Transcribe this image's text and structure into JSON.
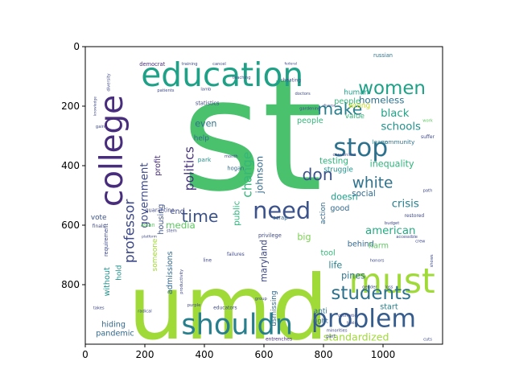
{
  "chart_data": {
    "type": "wordcloud",
    "title": "",
    "xlabel": "",
    "ylabel": "",
    "xlim": [
      0,
      1200
    ],
    "ylim": [
      1000,
      0
    ],
    "x_ticks": [
      0,
      200,
      400,
      600,
      800,
      1000
    ],
    "y_ticks": [
      0,
      200,
      400,
      600,
      800
    ],
    "grid": false,
    "colormap": "viridis",
    "words": [
      {
        "text": "st",
        "x": 560,
        "y": 300,
        "size": 520,
        "rot": 0,
        "color": "#4ac16d"
      },
      {
        "text": "umd",
        "x": 480,
        "y": 880,
        "size": 300,
        "rot": 0,
        "color": "#a0da39"
      },
      {
        "text": "education",
        "x": 460,
        "y": 95,
        "size": 110,
        "rot": 0,
        "color": "#1fa187"
      },
      {
        "text": "must",
        "x": 1030,
        "y": 790,
        "size": 115,
        "rot": 0,
        "color": "#a0da39"
      },
      {
        "text": "college",
        "x": 90,
        "y": 350,
        "size": 105,
        "rot": -90,
        "color": "#472d7b"
      },
      {
        "text": "shouldn",
        "x": 510,
        "y": 935,
        "size": 95,
        "rot": 0,
        "color": "#277f8e"
      },
      {
        "text": "problem",
        "x": 935,
        "y": 915,
        "size": 85,
        "rot": 0,
        "color": "#365c8d"
      },
      {
        "text": "stop",
        "x": 925,
        "y": 340,
        "size": 85,
        "rot": 0,
        "color": "#2c728e"
      },
      {
        "text": "need",
        "x": 660,
        "y": 550,
        "size": 78,
        "rot": 0,
        "color": "#3b528b"
      },
      {
        "text": "women",
        "x": 1030,
        "y": 140,
        "size": 62,
        "rot": 0,
        "color": "#1fa187"
      },
      {
        "text": "students",
        "x": 960,
        "y": 830,
        "size": 62,
        "rot": 0,
        "color": "#2c728e"
      },
      {
        "text": "time",
        "x": 385,
        "y": 570,
        "size": 55,
        "rot": 0,
        "color": "#3b528b"
      },
      {
        "text": "make",
        "x": 855,
        "y": 210,
        "size": 55,
        "rot": 0,
        "color": "#277f8e"
      },
      {
        "text": "don",
        "x": 780,
        "y": 430,
        "size": 55,
        "rot": 0,
        "color": "#3b528b"
      },
      {
        "text": "white",
        "x": 965,
        "y": 460,
        "size": 50,
        "rot": 0,
        "color": "#2c728e"
      },
      {
        "text": "professor",
        "x": 150,
        "y": 620,
        "size": 46,
        "rot": -90,
        "color": "#3e4989"
      },
      {
        "text": "politics",
        "x": 350,
        "y": 410,
        "size": 42,
        "rot": -90,
        "color": "#46327e"
      },
      {
        "text": "change",
        "x": 545,
        "y": 430,
        "size": 42,
        "rot": -90,
        "color": "#35b779"
      },
      {
        "text": "government",
        "x": 200,
        "y": 500,
        "size": 36,
        "rot": -90,
        "color": "#3e4989"
      },
      {
        "text": "schools",
        "x": 1060,
        "y": 270,
        "size": 36,
        "rot": 0,
        "color": "#21918c"
      },
      {
        "text": "black",
        "x": 1040,
        "y": 225,
        "size": 36,
        "rot": 0,
        "color": "#20a486"
      },
      {
        "text": "crisis",
        "x": 1075,
        "y": 530,
        "size": 36,
        "rot": 0,
        "color": "#277f8e"
      },
      {
        "text": "american",
        "x": 1025,
        "y": 620,
        "size": 36,
        "rot": 0,
        "color": "#25ab82"
      },
      {
        "text": "standardized",
        "x": 910,
        "y": 975,
        "size": 34,
        "rot": 0,
        "color": "#a0da39"
      },
      {
        "text": "homeless",
        "x": 995,
        "y": 180,
        "size": 32,
        "rot": 0,
        "color": "#2c728e"
      },
      {
        "text": "johnson",
        "x": 585,
        "y": 430,
        "size": 32,
        "rot": -90,
        "color": "#31688e"
      },
      {
        "text": "inequality",
        "x": 1030,
        "y": 395,
        "size": 30,
        "rot": 0,
        "color": "#2fb47c"
      },
      {
        "text": "media",
        "x": 320,
        "y": 600,
        "size": 32,
        "rot": 0,
        "color": "#5ec962"
      },
      {
        "text": "pines",
        "x": 900,
        "y": 770,
        "size": 30,
        "rot": 0,
        "color": "#2c728e"
      },
      {
        "text": "big",
        "x": 735,
        "y": 640,
        "size": 30,
        "rot": 0,
        "color": "#7ad151"
      },
      {
        "text": "life",
        "x": 840,
        "y": 735,
        "size": 30,
        "rot": 0,
        "color": "#26828e"
      },
      {
        "text": "maryland",
        "x": 600,
        "y": 720,
        "size": 30,
        "rot": -90,
        "color": "#3e4989"
      },
      {
        "text": "public",
        "x": 510,
        "y": 560,
        "size": 28,
        "rot": -90,
        "color": "#2fb47c"
      },
      {
        "text": "testing",
        "x": 835,
        "y": 385,
        "size": 28,
        "rot": 0,
        "color": "#2fb47c"
      },
      {
        "text": "struggle",
        "x": 850,
        "y": 415,
        "size": 24,
        "rot": 0,
        "color": "#21918c"
      },
      {
        "text": "doesn",
        "x": 870,
        "y": 505,
        "size": 30,
        "rot": 0,
        "color": "#1f9e89"
      },
      {
        "text": "social",
        "x": 935,
        "y": 495,
        "size": 28,
        "rot": 0,
        "color": "#31688e"
      },
      {
        "text": "good",
        "x": 855,
        "y": 545,
        "size": 26,
        "rot": 0,
        "color": "#31688e"
      },
      {
        "text": "people",
        "x": 880,
        "y": 185,
        "size": 26,
        "rot": 0,
        "color": "#35b779"
      },
      {
        "text": "human",
        "x": 910,
        "y": 155,
        "size": 24,
        "rot": 0,
        "color": "#1f9e89"
      },
      {
        "text": "wrong",
        "x": 920,
        "y": 200,
        "size": 24,
        "rot": 0,
        "color": "#c8e020"
      },
      {
        "text": "value",
        "x": 905,
        "y": 235,
        "size": 24,
        "rot": 0,
        "color": "#35b779"
      },
      {
        "text": "people",
        "x": 755,
        "y": 250,
        "size": 26,
        "rot": 0,
        "color": "#35b779"
      },
      {
        "text": "even",
        "x": 405,
        "y": 260,
        "size": 30,
        "rot": 0,
        "color": "#2c728e"
      },
      {
        "text": "end",
        "x": 310,
        "y": 555,
        "size": 26,
        "rot": 0,
        "color": "#3e4989"
      },
      {
        "text": "help",
        "x": 390,
        "y": 310,
        "size": 24,
        "rot": 0,
        "color": "#31688e"
      },
      {
        "text": "profit",
        "x": 245,
        "y": 400,
        "size": 26,
        "rot": -90,
        "color": "#472d7b"
      },
      {
        "text": "housing",
        "x": 255,
        "y": 580,
        "size": 26,
        "rot": -90,
        "color": "#3b528b"
      },
      {
        "text": "admissions",
        "x": 285,
        "y": 760,
        "size": 26,
        "rot": -90,
        "color": "#31688e"
      },
      {
        "text": "someone",
        "x": 235,
        "y": 700,
        "size": 24,
        "rot": -90,
        "color": "#a0da39"
      },
      {
        "text": "hold",
        "x": 115,
        "y": 760,
        "size": 24,
        "rot": -90,
        "color": "#21918c"
      },
      {
        "text": "without",
        "x": 75,
        "y": 790,
        "size": 26,
        "rot": -90,
        "color": "#21918c"
      },
      {
        "text": "hiding",
        "x": 95,
        "y": 935,
        "size": 26,
        "rot": 0,
        "color": "#31688e"
      },
      {
        "text": "pandemic",
        "x": 100,
        "y": 965,
        "size": 26,
        "rot": 0,
        "color": "#31688e"
      },
      {
        "text": "vote",
        "x": 45,
        "y": 575,
        "size": 24,
        "rot": 0,
        "color": "#3b528b"
      },
      {
        "text": "behind",
        "x": 925,
        "y": 665,
        "size": 26,
        "rot": 0,
        "color": "#31688e"
      },
      {
        "text": "action",
        "x": 800,
        "y": 560,
        "size": 24,
        "rot": -90,
        "color": "#31688e"
      },
      {
        "text": "tool",
        "x": 815,
        "y": 695,
        "size": 26,
        "rot": 0,
        "color": "#35b779"
      },
      {
        "text": "harm",
        "x": 985,
        "y": 670,
        "size": 26,
        "rot": 0,
        "color": "#5ec962"
      },
      {
        "text": "start",
        "x": 1020,
        "y": 875,
        "size": 26,
        "rot": 0,
        "color": "#26828e"
      },
      {
        "text": "anti",
        "x": 790,
        "y": 890,
        "size": 24,
        "rot": 0,
        "color": "#2c728e"
      },
      {
        "text": "right",
        "x": 790,
        "y": 920,
        "size": 22,
        "rot": 0,
        "color": "#31688e"
      },
      {
        "text": "usmissing",
        "x": 635,
        "y": 880,
        "size": 24,
        "rot": -90,
        "color": "#31688e"
      },
      {
        "text": "leave",
        "x": 990,
        "y": 320,
        "size": 20,
        "rot": 0,
        "color": "#26828e"
      },
      {
        "text": "community",
        "x": 1050,
        "y": 320,
        "size": 20,
        "rot": 0,
        "color": "#2c728e"
      },
      {
        "text": "russian",
        "x": 1000,
        "y": 30,
        "size": 18,
        "rot": 0,
        "color": "#2c728e"
      },
      {
        "text": "democrat",
        "x": 225,
        "y": 60,
        "size": 18,
        "rot": 0,
        "color": "#472d7b"
      },
      {
        "text": "statistics",
        "x": 410,
        "y": 190,
        "size": 18,
        "rot": 0,
        "color": "#3e4989"
      },
      {
        "text": "park",
        "x": 400,
        "y": 380,
        "size": 20,
        "rot": 0,
        "color": "#21918c"
      },
      {
        "text": "hogan",
        "x": 505,
        "y": 410,
        "size": 18,
        "rot": 0,
        "color": "#31688e"
      },
      {
        "text": "quarantine",
        "x": 250,
        "y": 550,
        "size": 18,
        "rot": 0,
        "color": "#3e4989"
      },
      {
        "text": "asian",
        "x": 210,
        "y": 600,
        "size": 18,
        "rot": 0,
        "color": "#5ec962"
      },
      {
        "text": "privilege",
        "x": 620,
        "y": 635,
        "size": 18,
        "rot": 0,
        "color": "#3e4989"
      },
      {
        "text": "scrap",
        "x": 655,
        "y": 575,
        "size": 18,
        "rot": 0,
        "color": "#31688e"
      },
      {
        "text": "failures",
        "x": 505,
        "y": 700,
        "size": 16,
        "rot": 0,
        "color": "#3e4989"
      },
      {
        "text": "requirement",
        "x": 70,
        "y": 650,
        "size": 18,
        "rot": -90,
        "color": "#3e4989"
      },
      {
        "text": "line",
        "x": 410,
        "y": 720,
        "size": 16,
        "rot": 0,
        "color": "#3e4989"
      },
      {
        "text": "educators",
        "x": 470,
        "y": 880,
        "size": 16,
        "rot": 0,
        "color": "#3e4989"
      },
      {
        "text": "entrenches",
        "x": 650,
        "y": 985,
        "size": 16,
        "rot": 0,
        "color": "#472d7b"
      },
      {
        "text": "finals",
        "x": 45,
        "y": 605,
        "size": 16,
        "rot": 0,
        "color": "#3e4989"
      },
      {
        "text": "cuts",
        "x": 1150,
        "y": 985,
        "size": 14,
        "rot": 0,
        "color": "#3e4989"
      },
      {
        "text": "crew",
        "x": 1125,
        "y": 655,
        "size": 14,
        "rot": 0,
        "color": "#3e4989"
      },
      {
        "text": "restored",
        "x": 1105,
        "y": 570,
        "size": 16,
        "rot": 0,
        "color": "#3e4989"
      },
      {
        "text": "budget",
        "x": 1030,
        "y": 595,
        "size": 14,
        "rot": 0,
        "color": "#3e4989"
      },
      {
        "text": "accessible",
        "x": 1080,
        "y": 640,
        "size": 14,
        "rot": 0,
        "color": "#3e4989"
      },
      {
        "text": "minorities",
        "x": 845,
        "y": 955,
        "size": 14,
        "rot": 0,
        "color": "#3e4989"
      },
      {
        "text": "gender",
        "x": 955,
        "y": 810,
        "size": 14,
        "rot": 0,
        "color": "#3e4989"
      },
      {
        "text": "loss",
        "x": 1020,
        "y": 810,
        "size": 14,
        "rot": 0,
        "color": "#3e4989"
      },
      {
        "text": "toxic",
        "x": 895,
        "y": 930,
        "size": 14,
        "rot": 0,
        "color": "#3e4989"
      },
      {
        "text": "cosmetic",
        "x": 880,
        "y": 905,
        "size": 14,
        "rot": 0,
        "color": "#3e4989"
      },
      {
        "text": "part",
        "x": 825,
        "y": 975,
        "size": 16,
        "rot": 0,
        "color": "#3e4989"
      },
      {
        "text": "purple",
        "x": 365,
        "y": 870,
        "size": 14,
        "rot": 0,
        "color": "#3e4989"
      },
      {
        "text": "takes",
        "x": 45,
        "y": 880,
        "size": 14,
        "rot": 0,
        "color": "#3e4989"
      },
      {
        "text": "radical",
        "x": 200,
        "y": 890,
        "size": 14,
        "rot": 0,
        "color": "#3e4989"
      },
      {
        "text": "group",
        "x": 590,
        "y": 848,
        "size": 14,
        "rot": 0,
        "color": "#3e4989"
      },
      {
        "text": "cheating",
        "x": 690,
        "y": 115,
        "size": 16,
        "rot": 0,
        "color": "#3e4989"
      },
      {
        "text": "teaching",
        "x": 525,
        "y": 105,
        "size": 14,
        "rot": 0,
        "color": "#3e4989"
      },
      {
        "text": "federal",
        "x": 690,
        "y": 60,
        "size": 12,
        "rot": 0,
        "color": "#3e4989"
      },
      {
        "text": "doctors",
        "x": 730,
        "y": 160,
        "size": 14,
        "rot": 0,
        "color": "#3e4989"
      },
      {
        "text": "gardening",
        "x": 755,
        "y": 210,
        "size": 14,
        "rot": 0,
        "color": "#3e4989"
      },
      {
        "text": "diverse",
        "x": 820,
        "y": 200,
        "size": 12,
        "rot": 0,
        "color": "#3e4989"
      },
      {
        "text": "convenient",
        "x": 870,
        "y": 365,
        "size": 14,
        "rot": 0,
        "color": "#3e4989"
      },
      {
        "text": "training",
        "x": 350,
        "y": 60,
        "size": 14,
        "rot": 0,
        "color": "#3e4989"
      },
      {
        "text": "cancel",
        "x": 450,
        "y": 60,
        "size": 14,
        "rot": 0,
        "color": "#3e4989"
      },
      {
        "text": "patients",
        "x": 270,
        "y": 148,
        "size": 14,
        "rot": 0,
        "color": "#3e4989"
      },
      {
        "text": "lamb",
        "x": 405,
        "y": 145,
        "size": 14,
        "rot": 0,
        "color": "#3e4989"
      },
      {
        "text": "month",
        "x": 490,
        "y": 370,
        "size": 14,
        "rot": 0,
        "color": "#3e4989"
      },
      {
        "text": "honors",
        "x": 980,
        "y": 720,
        "size": 14,
        "rot": 0,
        "color": "#3e4989"
      },
      {
        "text": "shows",
        "x": 1165,
        "y": 720,
        "size": 14,
        "rot": -90,
        "color": "#3e4989"
      },
      {
        "text": "suffer",
        "x": 1150,
        "y": 305,
        "size": 16,
        "rot": 0,
        "color": "#3e4989"
      },
      {
        "text": "work",
        "x": 1150,
        "y": 250,
        "size": 14,
        "rot": 0,
        "color": "#5ec962"
      },
      {
        "text": "path",
        "x": 1150,
        "y": 485,
        "size": 14,
        "rot": 0,
        "color": "#3e4989"
      },
      {
        "text": "productivity",
        "x": 325,
        "y": 790,
        "size": 14,
        "rot": -90,
        "color": "#3e4989"
      },
      {
        "text": "stem",
        "x": 290,
        "y": 620,
        "size": 14,
        "rot": 0,
        "color": "#3e4989"
      },
      {
        "text": "platform",
        "x": 215,
        "y": 640,
        "size": 12,
        "rot": 0,
        "color": "#3e4989"
      },
      {
        "text": "gain",
        "x": 50,
        "y": 270,
        "size": 14,
        "rot": 0,
        "color": "#3e4989"
      },
      {
        "text": "knowledge",
        "x": 35,
        "y": 200,
        "size": 12,
        "rot": -90,
        "color": "#3e4989"
      },
      {
        "text": "diversity",
        "x": 80,
        "y": 120,
        "size": 14,
        "rot": -90,
        "color": "#3e4989"
      }
    ]
  }
}
